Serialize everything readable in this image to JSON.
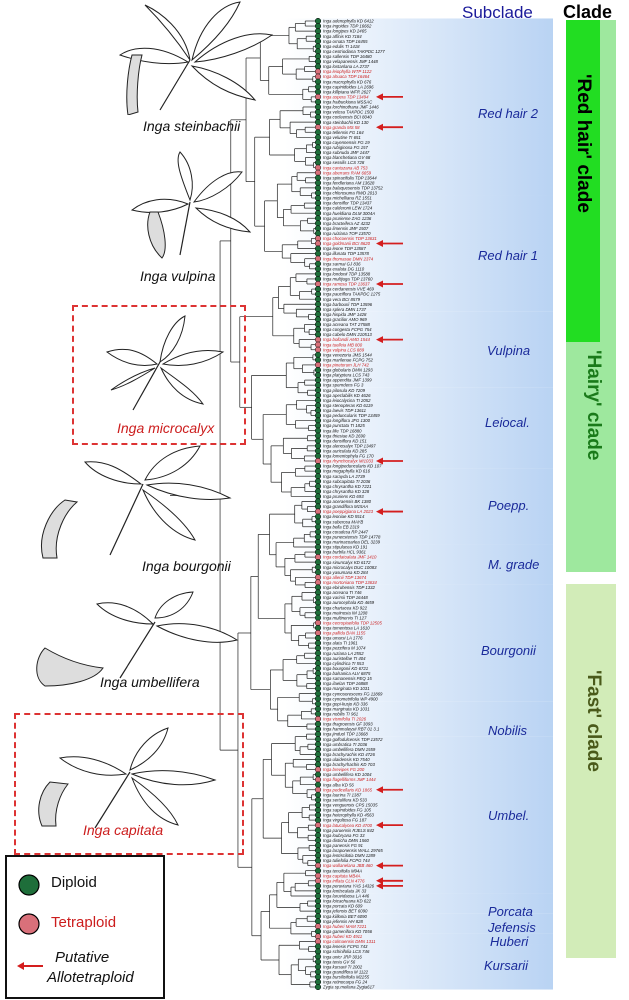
{
  "headers": {
    "subclade": "Subclade",
    "clade": "Clade"
  },
  "species": [
    {
      "name": "Inga steinbachii",
      "highlight": false
    },
    {
      "name": "Inga vulpina",
      "highlight": false
    },
    {
      "name": "Inga microcalyx",
      "highlight": true
    },
    {
      "name": "Inga bourgonii",
      "highlight": false
    },
    {
      "name": "Inga umbellifera",
      "highlight": false
    },
    {
      "name": "Inga capitata",
      "highlight": true
    }
  ],
  "subclades": [
    {
      "name": "Red hair 2"
    },
    {
      "name": "Red hair 1"
    },
    {
      "name": "Vulpina"
    },
    {
      "name": "Leiocal."
    },
    {
      "name": "Poepp."
    },
    {
      "name": "M. grade"
    },
    {
      "name": "Bourgonii"
    },
    {
      "name": "Nobilis"
    },
    {
      "name": "Umbel."
    },
    {
      "name": "Porcata"
    },
    {
      "name": "Jefensis"
    },
    {
      "name": "Huberi"
    },
    {
      "name": "Kursarii"
    }
  ],
  "clades": [
    {
      "name": "'Red hair' clade",
      "color": "#22dd22",
      "text_color": "#000000"
    },
    {
      "name": "'Hairy' clade",
      "color": "#9ee89e",
      "text_color": "#1a7a1a"
    },
    {
      "name": "'Fast' clade",
      "color": "#d2ecb8",
      "text_color": "#4a5a1a"
    }
  ],
  "legend": {
    "diploid": "Diploid",
    "tetraploid": "Tetraploid",
    "allotetraploid_line1": "Putative",
    "allotetraploid_line2": "Allotetraploid",
    "diploid_color": "#1e6e3a",
    "tetraploid_color": "#d9707a",
    "arrow_color": "#d41e1e"
  },
  "tips": [
    "Inga adenophylla KD 6412",
    "Inga ingoides TDP 16662",
    "Inga longipes KD 2465",
    "Inga affinis KD 7184",
    "Inga ornata TDP 16455",
    "Inga edulis TI 1418",
    "Inga cestriodiana TAKPDC 1277",
    "Inga sallensis TDP 16480",
    "Inga velapanensis JMF 1448",
    "Inga lostanlana LA 2737",
    "Inga leiophylla WTP 1122",
    "Inga ahuaca TDP 16464",
    "Inga macrophylla KD 676",
    "Inga capinidoides LA 2696",
    "Inga killipiana WFR 2627",
    "Inga aspera TDP 13494",
    "Inga fraibuckiana MSSAC",
    "Inga lorchinothana JMF 1446",
    "Inga velosa TAKPDC 1500",
    "Inga cocleensis BCI 8040",
    "Inga steinbachii KD 130",
    "Inga granda MS 58",
    "Inga tellensis FG 164",
    "Inga velutine TI 651",
    "Inga cayennensis FG 19",
    "Inga rubiginosa FG 157",
    "Inga subnuda JMF 1447",
    "Inga blanchetiana GV 68",
    "Inga sessilis LCS 728",
    "Inga cantuzana AB 753",
    "Inga aberrans RAM 6659",
    "Inga spinacifolia TDP 13644",
    "Inga fendleriana AM 13628",
    "Inga balaquesensis TDP 13752",
    "Inga chlorosuma RWD 2013",
    "Inga michelliana RZ 1551",
    "Inga densiflor TDP 13437",
    "Inga calderonii LEW 1724",
    "Inga hueldiana DLM 3004A",
    "Inga pruriense ZAG 1236",
    "Inga bracteifera AZ 4232",
    "Inga limensis JMF 1507",
    "Inga ruiziana TOP 13570",
    "Inga chocoensis TDP 13631",
    "Inga goldmanii BCI 8620",
    "Inga leone TDP 13587",
    "Inga illunata TDP 13578",
    "Inga thomasae DMN 2374",
    "Inga sarmai GJ 836",
    "Inga exalata DG 1110",
    "Inga londonii TDP 13588",
    "Inga multijuga TDP 13760",
    "Inga ramosa TDP 13637",
    "Inga cerdanensis VVE 469",
    "Inga pauciflora TAKPDC 1275",
    "Inga vera BCI 8579",
    "Inga barbourii TDP 13596",
    "Inga splera DMN 1737",
    "Inga hispida JMF 1428",
    "Inga gracilior AMO 969",
    "Inga acreana TAT 27588",
    "Inga congesta FCPG 754",
    "Inga cabelo DMN 210513",
    "Inga bollandii AMO 1544",
    "Inga tuelleia MB 800",
    "Inga vulpina LCS 889",
    "Inga venezoria JMS 1544",
    "Inga marilenae FCPG 752",
    "Inga pinetorum JLH 742",
    "Inga globularis DMN 1293",
    "Inga platyptera LCS 743",
    "Inga appendita JMF 1399",
    "Inga sperndens FG 3",
    "Inga pilosula KD 7209",
    "Inga apeclabilis KD 4626",
    "Inga leiocalycina TI 2052",
    "Inga stenopteras KD 6119",
    "Inga laevis TDP 13611",
    "Inga peduncularis TDP 13459",
    "Inga longiflora JFG 1300",
    "Inga punctata TI 1825",
    "Inga lilie TDP 16880",
    "Inga thiesiae KD 2690",
    "Inga densiflora KD 151",
    "Inga alenosalyx TDP 13497",
    "Inga auriculata KD 285",
    "Inga lomentophyla FG 170",
    "Inga rhynchocalyx MI1033",
    "Inga longipeduncularis KD 107",
    "Inga megaphylla KD 616",
    "Inga sarayda LA 2739",
    "Inga subcapitata TI 2036",
    "Inga chrysantha KD 7221",
    "Inga chrysantha KD 328",
    "Inga pruriens KD 693",
    "Inga aceraensis BK 1380",
    "Inga grandiflora M15AA",
    "Inga poeppigiana LA 2023",
    "Inga leoniae KD 5514",
    "Inga suberosa MAYB",
    "Inga bella EB 2319",
    "Inga coradesa RP 2447",
    "Inga punecstensis TDP 14778",
    "Inga marinacoarlea DEL 3239",
    "Inga stipulacea KD 191",
    "Inga burbila HCL 9361",
    "Inga cordatoalata JMF 1410",
    "Inga sinuncalyx KD 6172",
    "Inga microcalyx DUC 10083",
    "Inga yasumana KD 284",
    "Inga allenii TDP 13674",
    "Inga mortoniana TDP 13634",
    "Inga ebiruhensis TDP 1332",
    "Inga acreana TI 746",
    "Inga varirsii TDP 16448",
    "Inga aurocephala KD 4659",
    "Inga chartacea KD 922",
    "Inga meiinosia IM 1208",
    "Inga multinervis TI 127",
    "Inga cecropiaefolia TDP 12505",
    "Inga tomentosa LA 1610",
    "Inga pallida BAN 1155",
    "Inga umarsi LA 1776",
    "Inga alata TI 1961",
    "Inga pezzifera M 1074",
    "Inga ruziana LA 2552",
    "Inga auristellae TI 404",
    "Inga cylindrica TI 553",
    "Inga bourgonii KD 6721",
    "Inga balsanica ALV 6875",
    "Inga samanensis PEQ 15",
    "Inga ilaelan TDP 16888",
    "Inga marginata KD 1031",
    "Inga cymosorescens FG 11869",
    "Inga cynometrifolia WP 4900",
    "Inga gopi-kusjo KD 336",
    "Inga marginata KD 1031",
    "Inga nobilis TI 961",
    "Inga vismifolia TI 2026",
    "Inga thagroensis GF 3093",
    "Inga hammaleysii RBT 01 3.1",
    "Inga jinduol TDP 13668",
    "Inga golfodulcensis TDP 13572",
    "Inga umbratica TI 2036",
    "Inga umbellifera DMN 1559",
    "Inga brachyrachis KD 4726",
    "Inga ulaidensis KD 7540",
    "Inga brachyrhachis KD 703",
    "Inga brevipes FG 200",
    "Inga umbellifera KD 1004",
    "Inga flagelliforms JMF 1444",
    "Inga alba KD 56",
    "Inga pedicellaris KD 1865",
    "Inga laurina TI 1387",
    "Inga sertulifera KD 533",
    "Inga venguensis CPS 15035",
    "Inga sapindoides FG 105",
    "Inga heterophylla KD 4563",
    "Inga virgultosa FG 187",
    "Inga latucalycea KD 4700",
    "Inga paruensis RJELS 842",
    "Inga loubryana FG 33",
    "Inga disticha DMN 1560",
    "Inga panensis FG 91",
    "Inga laraponensis WALL 29765",
    "Inga lentiscilotia DMN 1289",
    "Inga tuliefolia FCPG 744",
    "Inga wallanelana JBB 460",
    "Inga tenuifolia M94A",
    "Inga capitata MB4A",
    "Inga inflata CLN 4776",
    "Inga peruviana YAS 14326",
    "Inga lentiscalata JK 33",
    "Inga laruvidaosa LA 446",
    "Inga loicachuana KD 622",
    "Inga porcata KD 609",
    "Inga jefensis BET 6090",
    "Inga kiillonia BET 6090",
    "Inga jefensis HH 828",
    "Inga huberi MAM 7221",
    "Inga gamenifora KD 7056",
    "Inga huberi KD 4911",
    "Inga colmaensis DMN 1311",
    "Inga lenesis FCPG 743",
    "Inga schinifolia LCS 746",
    "Inga unicr JRP 3016",
    "Inga tenia GV 56",
    "Inga kursarii TI 2002",
    "Inga grandiflora M 1122",
    "Inga bursilisifolia M2255",
    "Inga retinocarpa FG 24",
    "Zygia sp.meliana Zygia617"
  ],
  "tetraploid_tips": [
    10,
    11,
    15,
    21,
    29,
    30,
    43,
    44,
    47,
    52,
    63,
    64,
    65,
    68,
    87,
    97,
    106,
    110,
    111,
    119,
    121,
    138,
    148,
    150,
    152,
    159,
    167,
    169,
    170,
    179,
    181,
    182
  ],
  "arrow_tips": [
    15,
    21,
    44,
    52,
    63,
    87,
    97,
    152,
    159,
    167,
    170,
    171
  ]
}
